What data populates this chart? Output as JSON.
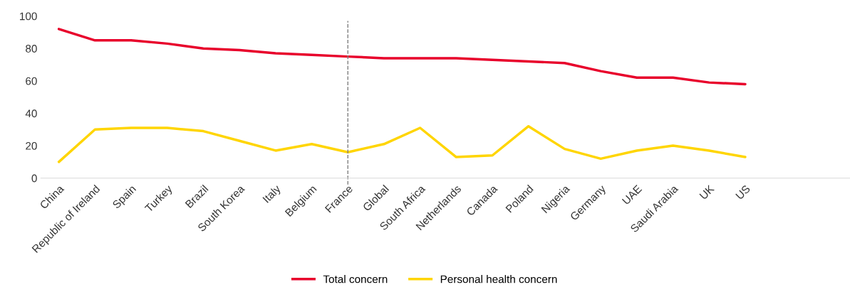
{
  "chart_data": {
    "type": "line",
    "categories": [
      "China",
      "Republic of Ireland",
      "Spain",
      "Turkey",
      "Brazil",
      "South Korea",
      "Italy",
      "Belgium",
      "France",
      "Global",
      "South Africa",
      "Netherlands",
      "Canada",
      "Poland",
      "Nigeria",
      "Germany",
      "UAE",
      "Saudi Arabia",
      "UK",
      "US"
    ],
    "series": [
      {
        "name": "Total concern",
        "color": "#e8002b",
        "values": [
          92,
          85,
          85,
          83,
          80,
          79,
          77,
          76,
          75,
          74,
          74,
          74,
          73,
          72,
          71,
          66,
          62,
          62,
          59,
          58
        ]
      },
      {
        "name": "Personal health concern",
        "color": "#ffd500",
        "values": [
          10,
          30,
          31,
          31,
          29,
          23,
          17,
          21,
          16,
          21,
          31,
          13,
          14,
          32,
          18,
          12,
          17,
          20,
          17,
          13
        ]
      }
    ],
    "ylim": [
      0,
      100
    ],
    "yticks": [
      0,
      20,
      40,
      60,
      80,
      100
    ],
    "ref_lines": [
      {
        "axis": "x",
        "value": "France",
        "color": "#808080",
        "line_style": "dashed"
      }
    ],
    "grid": false,
    "legend": "bottom",
    "marker": "none",
    "line_style": "solid"
  }
}
